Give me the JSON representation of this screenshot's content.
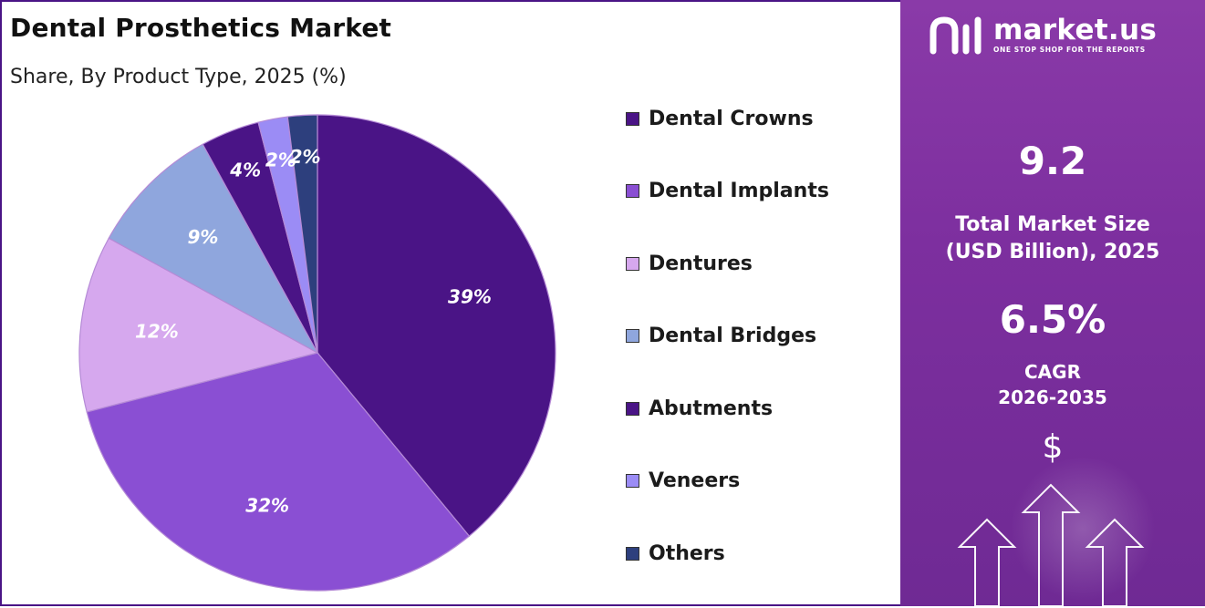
{
  "title": "Dental Prosthetics Market",
  "subtitle": "Share, By Product Type, 2025 (%)",
  "chart_data": {
    "type": "pie",
    "title": "Dental Prosthetics Market",
    "subtitle": "Share, By Product Type, 2025 (%)",
    "start_angle_deg": 0,
    "direction": "clockwise",
    "legend_position": "right",
    "slices": [
      {
        "label": "Dental Crowns",
        "value": 39,
        "display": "39%",
        "color": "#4a1486"
      },
      {
        "label": "Dental Implants",
        "value": 32,
        "display": "32%",
        "color": "#8a4fd3"
      },
      {
        "label": "Dentures",
        "value": 12,
        "display": "12%",
        "color": "#d6a8ee"
      },
      {
        "label": "Dental Bridges",
        "value": 9,
        "display": "9%",
        "color": "#8fa6dd"
      },
      {
        "label": "Abutments",
        "value": 4,
        "display": "4%",
        "color": "#4a1486"
      },
      {
        "label": "Veneers",
        "value": 2,
        "display": "2%",
        "color": "#9b8cf5"
      },
      {
        "label": "Others",
        "value": 2,
        "display": "2%",
        "color": "#2d3f7d"
      }
    ]
  },
  "sidebar": {
    "brand": "market.us",
    "tagline": "ONE STOP SHOP FOR THE REPORTS",
    "market_size_value": "9.2",
    "market_size_label_line1": "Total Market Size",
    "market_size_label_line2": "(USD Billion), 2025",
    "cagr_value": "6.5%",
    "cagr_label_line1": "CAGR",
    "cagr_label_line2": "2026-2035",
    "currency_symbol": "$",
    "background_color": "#7d2f9f"
  }
}
